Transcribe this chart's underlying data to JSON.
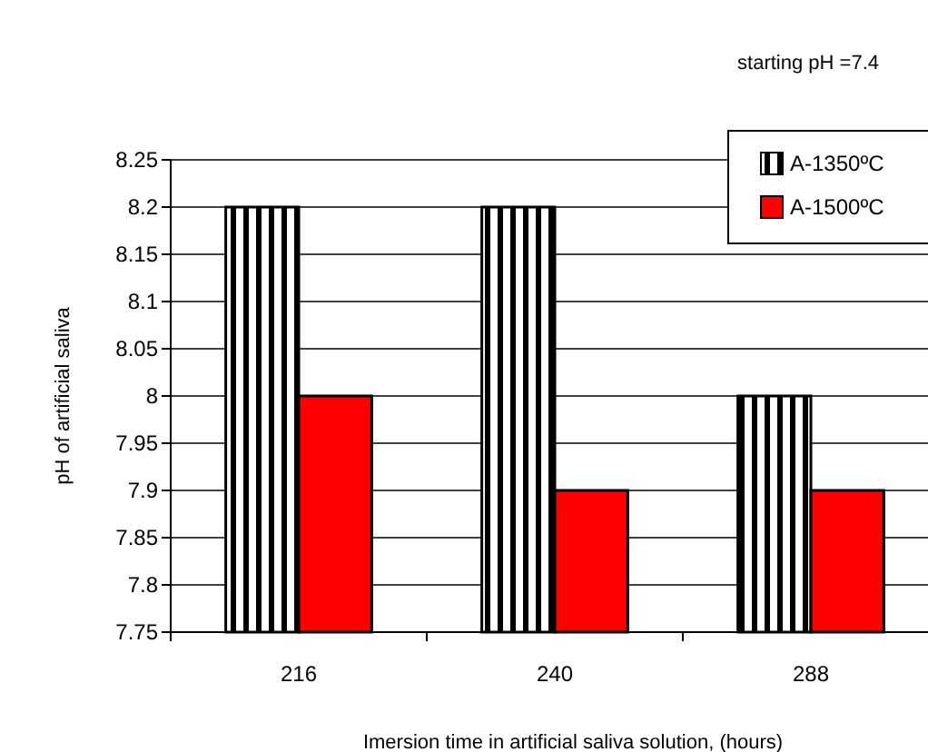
{
  "chart_data": {
    "type": "bar",
    "xlabel": "Imersion time in artificial saliva solution, (hours)",
    "ylabel": "pH of artificial saliva",
    "annotations": [
      "starting pH =7.4"
    ],
    "categories": [
      "216",
      "240",
      "288"
    ],
    "series": [
      {
        "name": "A-1350ºC",
        "color": "#000000",
        "values": [
          8.2,
          8.2,
          8.0
        ]
      },
      {
        "name": "A-1500ºC",
        "color": "#ff0000",
        "values": [
          8.0,
          7.9,
          7.9
        ]
      }
    ],
    "ylim": [
      7.75,
      8.25
    ],
    "yticks": [
      7.75,
      7.8,
      7.85,
      7.9,
      7.95,
      8,
      8.05,
      8.1,
      8.15,
      8.2,
      8.25
    ],
    "grid": "y",
    "legend": "top right"
  }
}
